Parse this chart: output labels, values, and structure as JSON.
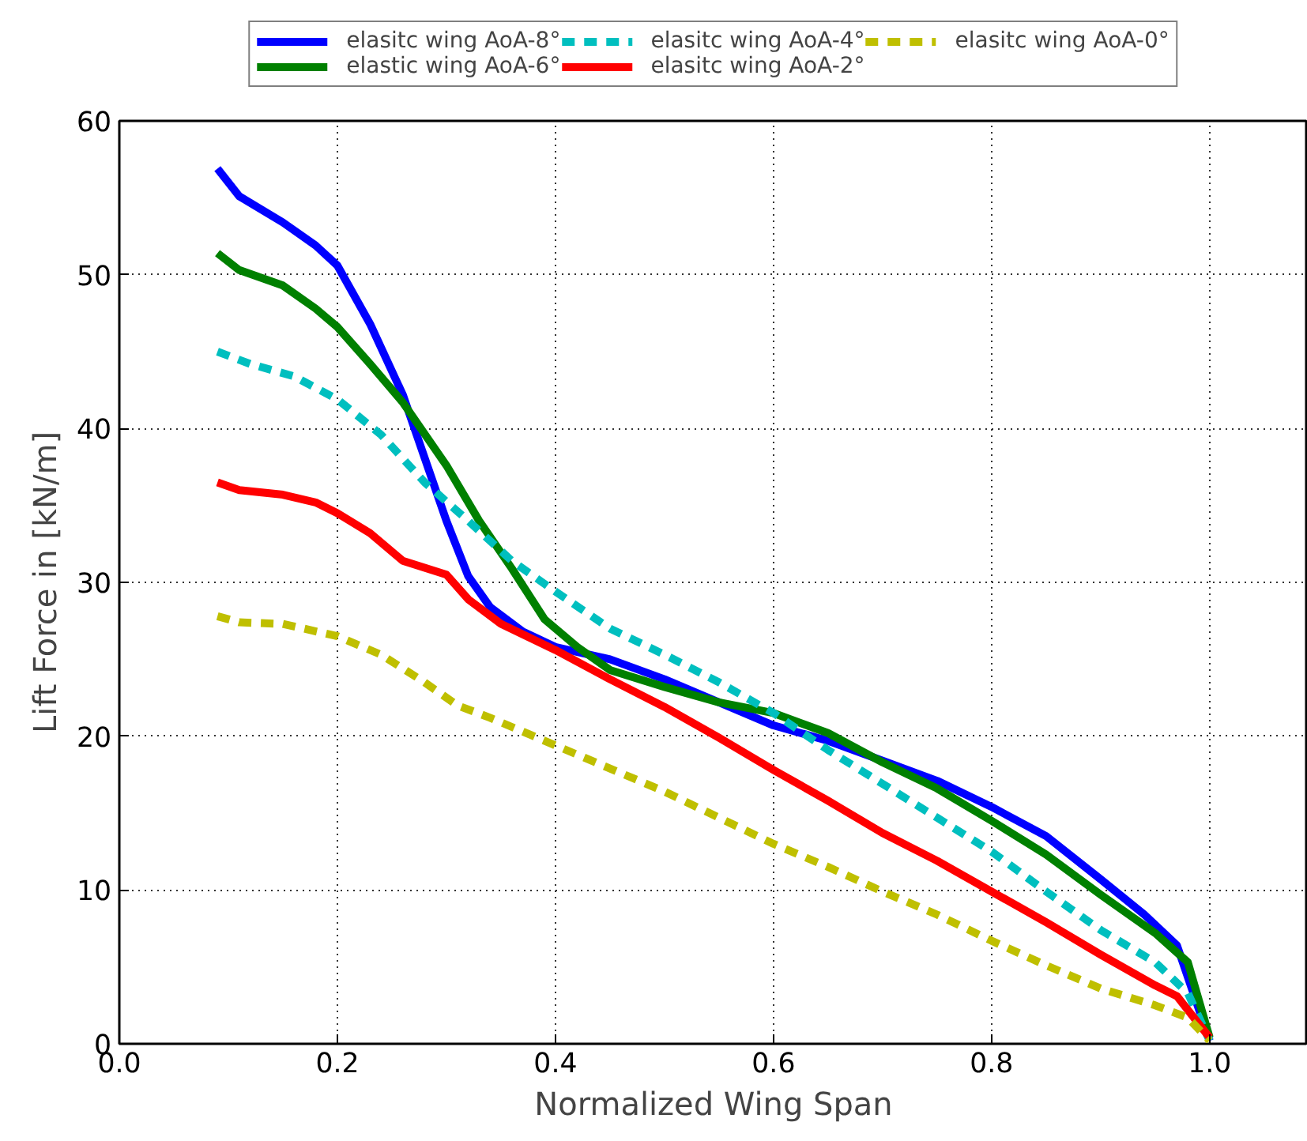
{
  "chart_data": {
    "type": "line",
    "xlabel": "Normalized Wing Span",
    "ylabel": "Lift Force in [kN/m]",
    "xlim": [
      0,
      1.09
    ],
    "ylim": [
      0,
      60
    ],
    "xticks": [
      {
        "value": 0,
        "label": "0.0"
      },
      {
        "value": 0.2,
        "label": "0.2"
      },
      {
        "value": 0.4,
        "label": "0.4"
      },
      {
        "value": 0.6,
        "label": "0.6"
      },
      {
        "value": 0.8,
        "label": "0.8"
      },
      {
        "value": 1.0,
        "label": "1.0"
      }
    ],
    "yticks": [
      0,
      10,
      20,
      30,
      40,
      50,
      60
    ],
    "grid": true,
    "legend": "top",
    "series": [
      {
        "name": "elasitc wing AoA-8°",
        "color": "#0000ff",
        "line_style": "solid",
        "x": [
          0.09,
          0.11,
          0.15,
          0.18,
          0.2,
          0.23,
          0.26,
          0.28,
          0.3,
          0.32,
          0.34,
          0.37,
          0.4,
          0.45,
          0.5,
          0.55,
          0.6,
          0.65,
          0.7,
          0.75,
          0.8,
          0.85,
          0.9,
          0.94,
          0.97,
          1.0
        ],
        "values": [
          56.9,
          55.1,
          53.4,
          51.9,
          50.6,
          46.8,
          42.2,
          38.1,
          34.0,
          30.4,
          28.4,
          26.8,
          25.8,
          25.0,
          23.7,
          22.2,
          20.7,
          19.7,
          18.4,
          17.1,
          15.4,
          13.5,
          10.7,
          8.4,
          6.4,
          0.2
        ]
      },
      {
        "name": "elastic wing AoA-6°",
        "color": "#008000",
        "line_style": "solid",
        "x": [
          0.09,
          0.11,
          0.15,
          0.18,
          0.2,
          0.23,
          0.26,
          0.3,
          0.33,
          0.36,
          0.39,
          0.42,
          0.45,
          0.5,
          0.55,
          0.6,
          0.65,
          0.7,
          0.75,
          0.8,
          0.85,
          0.9,
          0.95,
          0.98,
          1.0
        ],
        "values": [
          51.4,
          50.3,
          49.3,
          47.8,
          46.6,
          44.2,
          41.7,
          37.6,
          34.0,
          30.9,
          27.6,
          25.8,
          24.3,
          23.2,
          22.2,
          21.5,
          20.2,
          18.3,
          16.6,
          14.5,
          12.3,
          9.7,
          7.2,
          5.3,
          0.4
        ]
      },
      {
        "name": "elasitc wing AoA-4°",
        "color": "#00bfbf",
        "line_style": "dashed",
        "x": [
          0.09,
          0.12,
          0.16,
          0.2,
          0.24,
          0.28,
          0.32,
          0.36,
          0.4,
          0.45,
          0.5,
          0.55,
          0.6,
          0.65,
          0.7,
          0.75,
          0.8,
          0.85,
          0.9,
          0.95,
          0.98,
          1.0
        ],
        "values": [
          45.0,
          44.2,
          43.4,
          41.9,
          39.6,
          36.5,
          34.0,
          31.4,
          29.4,
          27.0,
          25.3,
          23.5,
          21.5,
          19.1,
          16.9,
          14.7,
          12.5,
          9.9,
          7.4,
          5.3,
          3.3,
          0.2
        ]
      },
      {
        "name": "elasitc wing AoA-2°",
        "color": "#ff0000",
        "line_style": "solid",
        "x": [
          0.09,
          0.11,
          0.15,
          0.18,
          0.2,
          0.23,
          0.26,
          0.3,
          0.32,
          0.35,
          0.4,
          0.45,
          0.5,
          0.55,
          0.6,
          0.65,
          0.7,
          0.75,
          0.8,
          0.85,
          0.9,
          0.95,
          0.97,
          1.0
        ],
        "values": [
          36.5,
          36.0,
          35.7,
          35.2,
          34.5,
          33.2,
          31.4,
          30.5,
          28.9,
          27.3,
          25.6,
          23.7,
          21.9,
          19.9,
          17.8,
          15.8,
          13.7,
          11.9,
          9.9,
          7.9,
          5.8,
          3.8,
          3.1,
          0.4
        ]
      },
      {
        "name": "elasitc wing AoA-0°",
        "color": "#bfbf00",
        "line_style": "dashed",
        "x": [
          0.09,
          0.11,
          0.15,
          0.2,
          0.24,
          0.28,
          0.31,
          0.34,
          0.4,
          0.45,
          0.5,
          0.55,
          0.6,
          0.65,
          0.7,
          0.75,
          0.8,
          0.85,
          0.9,
          0.95,
          0.98,
          1.0
        ],
        "values": [
          27.8,
          27.4,
          27.3,
          26.5,
          25.3,
          23.5,
          22.0,
          21.2,
          19.4,
          17.9,
          16.4,
          14.7,
          13.0,
          11.5,
          9.9,
          8.4,
          6.7,
          5.1,
          3.6,
          2.5,
          1.7,
          0.2
        ]
      }
    ]
  }
}
